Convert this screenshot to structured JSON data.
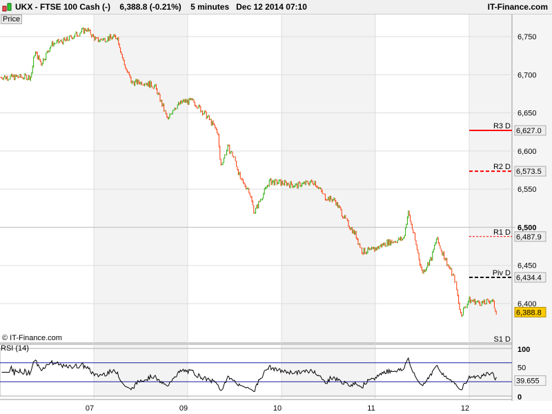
{
  "header": {
    "symbol": "UKX - FTSE 100 Cash (-)",
    "last": "6,388.8 (-0.21%)",
    "interval": "5 minutes",
    "datetime": "Dec 12 2014 07:10",
    "brand": "IT-Finance.com"
  },
  "panels": {
    "price_label": "Price",
    "rsi_label": "RSI (14)",
    "copyright": "© IT-Finance.com"
  },
  "colors": {
    "up": "#22aa00",
    "down": "#ff3300",
    "rsi_band": "#1a1aa0",
    "current": "#ffcc00"
  },
  "chart_data": [
    {
      "type": "candlestick",
      "title": "",
      "ylim": [
        6375,
        6765
      ],
      "x_ticks": [
        {
          "x": 1,
          "label": "07"
        },
        {
          "x": 2,
          "label": "09"
        },
        {
          "x": 3,
          "label": "10"
        },
        {
          "x": 4,
          "label": "11"
        },
        {
          "x": 5,
          "label": "12"
        }
      ],
      "y_ticks": [
        "6,400",
        "6,450",
        "6,500",
        "6,550",
        "6,600",
        "6,650",
        "6,700",
        "6,750"
      ],
      "y_tick_values": [
        6400,
        6450,
        6500,
        6550,
        6600,
        6650,
        6700,
        6750
      ],
      "close_path": [
        [
          0,
          6697
        ],
        [
          0.33,
          6697
        ],
        [
          0.37,
          6730
        ],
        [
          0.44,
          6715
        ],
        [
          0.55,
          6740
        ],
        [
          0.7,
          6745
        ],
        [
          0.92,
          6760
        ],
        [
          1.03,
          6745
        ],
        [
          1.25,
          6750
        ],
        [
          1.32,
          6715
        ],
        [
          1.4,
          6690
        ],
        [
          1.54,
          6690
        ],
        [
          1.65,
          6685
        ],
        [
          1.73,
          6660
        ],
        [
          1.79,
          6640
        ],
        [
          1.84,
          6655
        ],
        [
          1.95,
          6665
        ],
        [
          2.06,
          6665
        ],
        [
          2.21,
          6645
        ],
        [
          2.32,
          6625
        ],
        [
          2.35,
          6580
        ],
        [
          2.43,
          6605
        ],
        [
          2.5,
          6590
        ],
        [
          2.57,
          6560
        ],
        [
          2.65,
          6550
        ],
        [
          2.71,
          6520
        ],
        [
          2.79,
          6540
        ],
        [
          2.87,
          6560
        ],
        [
          3.01,
          6558
        ],
        [
          3.16,
          6555
        ],
        [
          3.35,
          6560
        ],
        [
          3.46,
          6540
        ],
        [
          3.57,
          6535
        ],
        [
          3.68,
          6510
        ],
        [
          3.79,
          6490
        ],
        [
          3.86,
          6468
        ],
        [
          3.97,
          6470
        ],
        [
          4.12,
          6480
        ],
        [
          4.3,
          6485
        ],
        [
          4.35,
          6520
        ],
        [
          4.41,
          6490
        ],
        [
          4.5,
          6440
        ],
        [
          4.6,
          6460
        ],
        [
          4.65,
          6485
        ],
        [
          4.74,
          6460
        ],
        [
          4.85,
          6430
        ],
        [
          4.91,
          6385
        ],
        [
          5.0,
          6405
        ],
        [
          5.15,
          6400
        ],
        [
          5.24,
          6405
        ],
        [
          5.29,
          6388.8
        ]
      ],
      "levels": [
        {
          "name": "R3 D",
          "value": "6,627.0",
          "v": 6627.0,
          "color": "#ff0000",
          "style": "solid"
        },
        {
          "name": "R2 D",
          "value": "6,573.5",
          "v": 6573.5,
          "color": "#ff0000",
          "style": "dashed"
        },
        {
          "name": "R1 D",
          "value": "6,487.9",
          "v": 6487.9,
          "color": "#ff0000",
          "style": "dotted"
        },
        {
          "name": "Piv D",
          "value": "6,434.4",
          "v": 6434.4,
          "color": "#000000",
          "style": "dashed"
        },
        {
          "name": "S1 D",
          "value": "",
          "v": null,
          "color": "#009900",
          "style": "none"
        }
      ],
      "current": "6,388.8"
    },
    {
      "type": "line",
      "title": "RSI (14)",
      "ylim": [
        0,
        100
      ],
      "y_ticks": [
        "0",
        "50",
        "100"
      ],
      "bands": [
        30,
        70
      ],
      "last": "39.655"
    }
  ]
}
